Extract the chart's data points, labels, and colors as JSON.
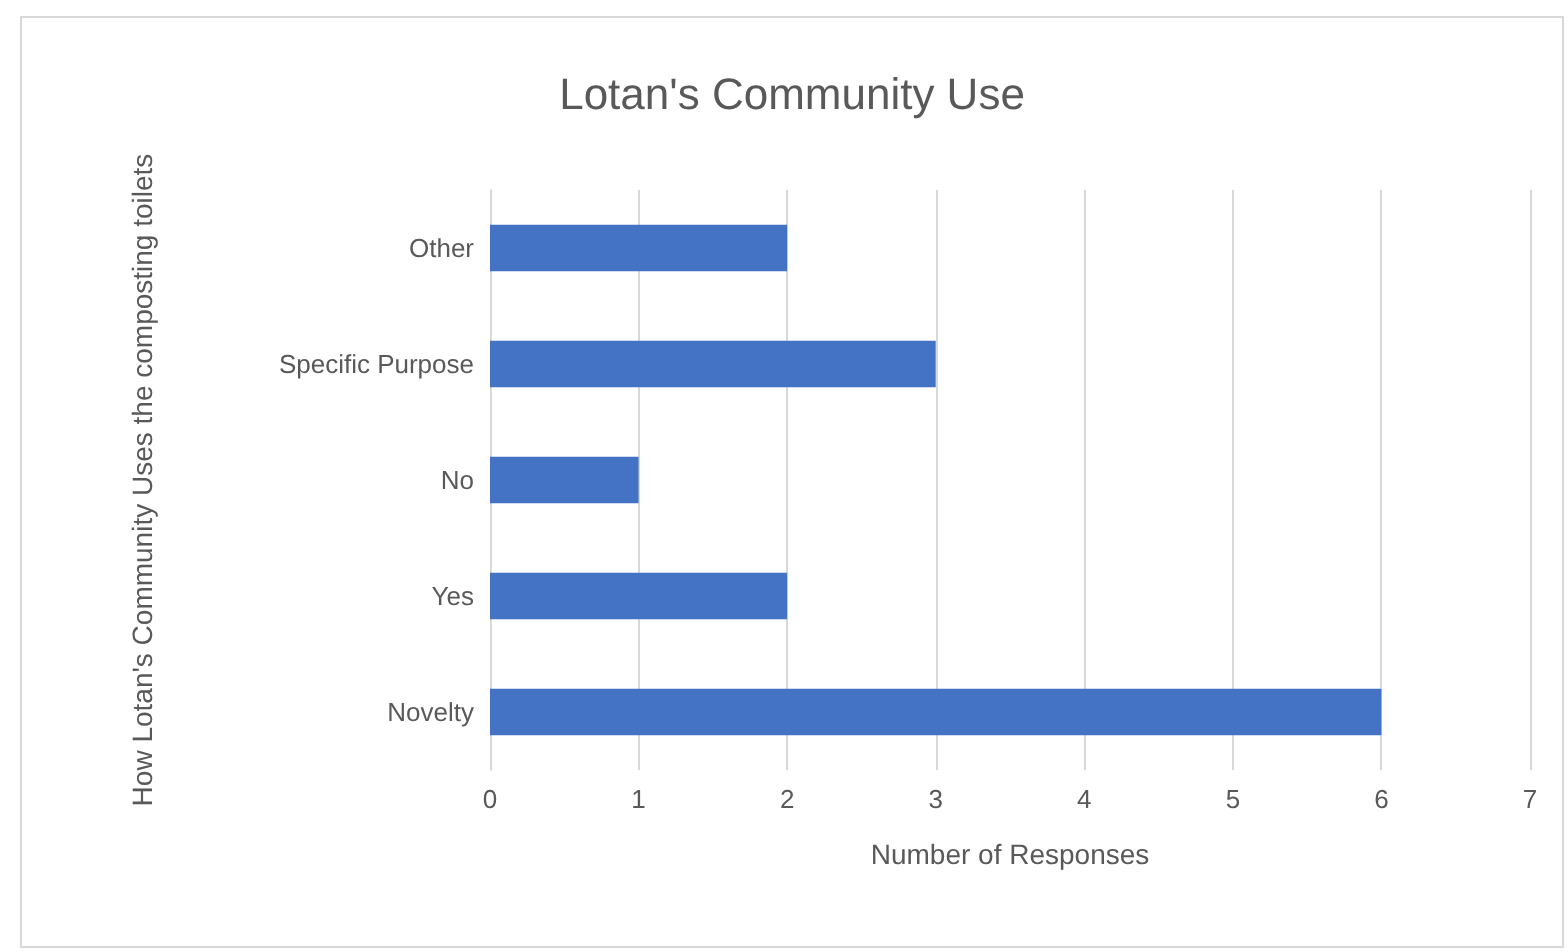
{
  "chart_data": {
    "type": "bar",
    "orientation": "horizontal",
    "title": "Lotan's Community Use",
    "xlabel": "Number of Responses",
    "ylabel": "How Lotan's Community Uses the composting toilets",
    "categories": [
      "Other",
      "Specific Purpose",
      "No",
      "Yes",
      "Novelty"
    ],
    "values": [
      2,
      3,
      1,
      2,
      6
    ],
    "color": "#4472c4",
    "xlim": [
      0,
      7
    ],
    "xticks": [
      0,
      1,
      2,
      3,
      4,
      5,
      6,
      7
    ],
    "grid": "x"
  }
}
